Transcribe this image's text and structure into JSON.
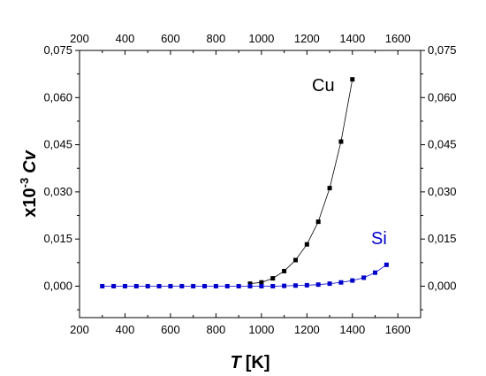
{
  "chart_data": {
    "type": "scatter",
    "xlabel_symbol": "T",
    "xlabel_unit": "[K]",
    "ylabel_prefix": "x10",
    "ylabel_exponent": "-3",
    "ylabel_symbol": "Cv",
    "xlim": [
      200,
      1700
    ],
    "ylim": [
      -0.01,
      0.075
    ],
    "x_ticks": [
      200,
      400,
      600,
      800,
      1000,
      1200,
      1400,
      1600
    ],
    "x_tick_labels": [
      "200",
      "400",
      "600",
      "800",
      "1000",
      "1200",
      "1400",
      "1600"
    ],
    "y_ticks": [
      0.0,
      0.015,
      0.03,
      0.045,
      0.06,
      0.075
    ],
    "y_tick_labels": [
      "0,000",
      "0,015",
      "0,030",
      "0,045",
      "0,060",
      "0,075"
    ],
    "grid": false,
    "series": [
      {
        "name": "Cu",
        "color": "#000000",
        "connected": true,
        "x": [
          950,
          1000,
          1050,
          1100,
          1150,
          1200,
          1250,
          1300,
          1350,
          1400
        ],
        "y": [
          0.0008,
          0.0012,
          0.0025,
          0.0048,
          0.0083,
          0.0133,
          0.0205,
          0.0312,
          0.046,
          0.0658
        ]
      },
      {
        "name": "Si",
        "color": "#0000cc",
        "connected": true,
        "x": [
          300,
          350,
          400,
          450,
          500,
          550,
          600,
          650,
          700,
          750,
          800,
          850,
          900,
          950,
          1000,
          1050,
          1100,
          1150,
          1200,
          1250,
          1300,
          1350,
          1400,
          1450,
          1500,
          1550
        ],
        "y": [
          0,
          0,
          0,
          0,
          0,
          0,
          0,
          0,
          0,
          0,
          0,
          0,
          0,
          0,
          0,
          0,
          0.0001,
          0.0002,
          0.0003,
          0.0005,
          0.0008,
          0.0012,
          0.0018,
          0.0027,
          0.0043,
          0.0068
        ]
      }
    ]
  }
}
